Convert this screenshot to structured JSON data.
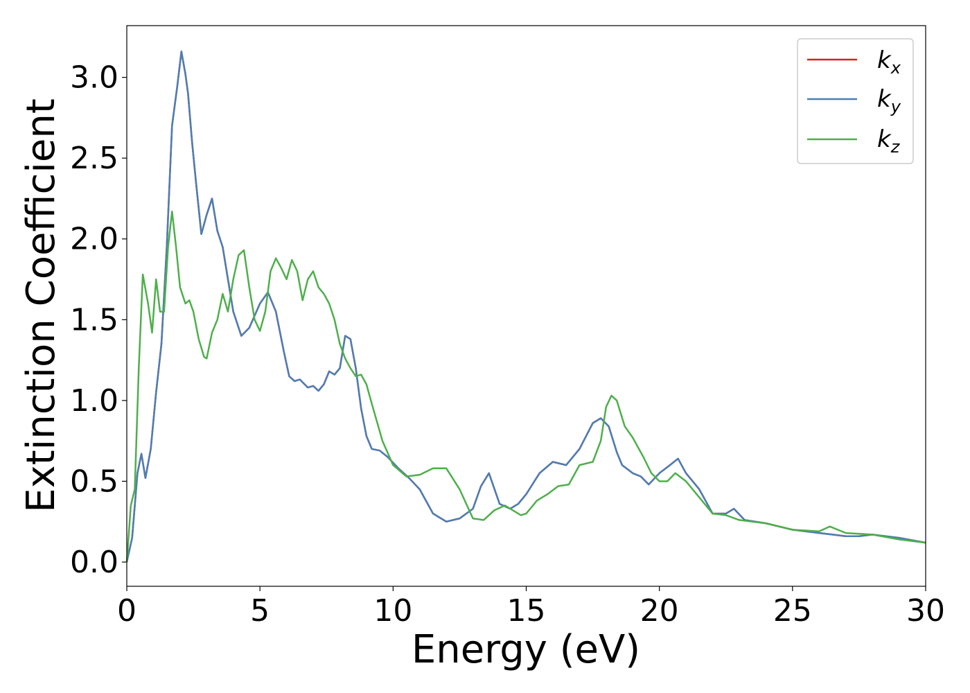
{
  "chart_data": {
    "type": "line",
    "title": "",
    "xlabel": "Energy (eV)",
    "ylabel": "Extinction Coefficient",
    "xlim": [
      0,
      30
    ],
    "ylim": [
      -0.15,
      3.32
    ],
    "xticks": [
      0,
      5,
      10,
      15,
      20,
      25,
      30
    ],
    "yticks": [
      0.0,
      0.5,
      1.0,
      1.5,
      2.0,
      2.5,
      3.0
    ],
    "xtick_labels": [
      "0",
      "5",
      "10",
      "15",
      "20",
      "25",
      "30"
    ],
    "ytick_labels": [
      "0.0",
      "0.5",
      "1.0",
      "1.5",
      "2.0",
      "2.5",
      "3.0"
    ],
    "grid": false,
    "legend_position": "top-right",
    "series": [
      {
        "name": "kx",
        "label_main": "k",
        "label_sub": "x",
        "color": "#e41a1c",
        "x": [
          0,
          0.2,
          0.4,
          0.55,
          0.7,
          0.9,
          1.1,
          1.3,
          1.5,
          1.7,
          1.9,
          2.05,
          2.2,
          2.3,
          2.45,
          2.6,
          2.8,
          3.0,
          3.2,
          3.4,
          3.6,
          3.8,
          4.0,
          4.3,
          4.6,
          5.0,
          5.3,
          5.6,
          5.9,
          6.1,
          6.3,
          6.5,
          6.8,
          7.0,
          7.2,
          7.4,
          7.6,
          7.8,
          8.0,
          8.2,
          8.4,
          8.6,
          8.8,
          9.0,
          9.2,
          9.5,
          9.8,
          10.2,
          10.6,
          11.0,
          11.5,
          12.0,
          12.5,
          13.0,
          13.3,
          13.6,
          14.0,
          14.4,
          14.7,
          15.0,
          15.5,
          16.0,
          16.5,
          17.0,
          17.5,
          17.8,
          18.1,
          18.4,
          18.6,
          19.0,
          19.3,
          19.6,
          20.0,
          20.4,
          20.7,
          21.0,
          21.5,
          22.0,
          22.5,
          22.8,
          23.2,
          24.0,
          25.0,
          26.0,
          26.5,
          27.0,
          27.5,
          28.0,
          29.0,
          30.0
        ],
        "y": [
          0.0,
          0.15,
          0.55,
          0.67,
          0.52,
          0.7,
          1.05,
          1.35,
          1.95,
          2.7,
          2.95,
          3.16,
          3.02,
          2.9,
          2.6,
          2.35,
          2.03,
          2.15,
          2.25,
          2.05,
          1.95,
          1.75,
          1.55,
          1.4,
          1.45,
          1.6,
          1.67,
          1.55,
          1.3,
          1.15,
          1.12,
          1.13,
          1.08,
          1.09,
          1.06,
          1.1,
          1.18,
          1.16,
          1.2,
          1.4,
          1.38,
          1.2,
          0.95,
          0.78,
          0.7,
          0.69,
          0.65,
          0.58,
          0.52,
          0.45,
          0.3,
          0.25,
          0.27,
          0.33,
          0.47,
          0.55,
          0.36,
          0.33,
          0.36,
          0.42,
          0.55,
          0.62,
          0.6,
          0.7,
          0.86,
          0.89,
          0.84,
          0.68,
          0.6,
          0.55,
          0.53,
          0.48,
          0.55,
          0.6,
          0.64,
          0.55,
          0.45,
          0.3,
          0.3,
          0.33,
          0.26,
          0.24,
          0.2,
          0.18,
          0.17,
          0.16,
          0.16,
          0.17,
          0.15,
          0.12
        ]
      },
      {
        "name": "ky",
        "label_main": "k",
        "label_sub": "y",
        "color": "#4a7fb5",
        "x": [
          0,
          0.2,
          0.4,
          0.55,
          0.7,
          0.9,
          1.1,
          1.3,
          1.5,
          1.7,
          1.9,
          2.05,
          2.2,
          2.3,
          2.45,
          2.6,
          2.8,
          3.0,
          3.2,
          3.4,
          3.6,
          3.8,
          4.0,
          4.3,
          4.6,
          5.0,
          5.3,
          5.6,
          5.9,
          6.1,
          6.3,
          6.5,
          6.8,
          7.0,
          7.2,
          7.4,
          7.6,
          7.8,
          8.0,
          8.2,
          8.4,
          8.6,
          8.8,
          9.0,
          9.2,
          9.5,
          9.8,
          10.2,
          10.6,
          11.0,
          11.5,
          12.0,
          12.5,
          13.0,
          13.3,
          13.6,
          14.0,
          14.4,
          14.7,
          15.0,
          15.5,
          16.0,
          16.5,
          17.0,
          17.5,
          17.8,
          18.1,
          18.4,
          18.6,
          19.0,
          19.3,
          19.6,
          20.0,
          20.4,
          20.7,
          21.0,
          21.5,
          22.0,
          22.5,
          22.8,
          23.2,
          24.0,
          25.0,
          26.0,
          26.5,
          27.0,
          27.5,
          28.0,
          29.0,
          30.0
        ],
        "y": [
          0.0,
          0.15,
          0.55,
          0.67,
          0.52,
          0.7,
          1.05,
          1.35,
          1.95,
          2.7,
          2.95,
          3.16,
          3.02,
          2.9,
          2.6,
          2.35,
          2.03,
          2.15,
          2.25,
          2.05,
          1.95,
          1.75,
          1.55,
          1.4,
          1.45,
          1.6,
          1.67,
          1.55,
          1.3,
          1.15,
          1.12,
          1.13,
          1.08,
          1.09,
          1.06,
          1.1,
          1.18,
          1.16,
          1.2,
          1.4,
          1.38,
          1.2,
          0.95,
          0.78,
          0.7,
          0.69,
          0.65,
          0.58,
          0.52,
          0.45,
          0.3,
          0.25,
          0.27,
          0.33,
          0.47,
          0.55,
          0.36,
          0.33,
          0.36,
          0.42,
          0.55,
          0.62,
          0.6,
          0.7,
          0.86,
          0.89,
          0.84,
          0.68,
          0.6,
          0.55,
          0.53,
          0.48,
          0.55,
          0.6,
          0.64,
          0.55,
          0.45,
          0.3,
          0.3,
          0.33,
          0.26,
          0.24,
          0.2,
          0.18,
          0.17,
          0.16,
          0.16,
          0.17,
          0.15,
          0.12
        ]
      },
      {
        "name": "kz",
        "label_main": "k",
        "label_sub": "z",
        "color": "#4daf4a",
        "x": [
          0,
          0.15,
          0.3,
          0.45,
          0.6,
          0.8,
          0.95,
          1.1,
          1.25,
          1.4,
          1.55,
          1.7,
          1.85,
          2.0,
          2.2,
          2.35,
          2.5,
          2.7,
          2.9,
          3.0,
          3.2,
          3.4,
          3.6,
          3.8,
          4.0,
          4.2,
          4.4,
          4.6,
          4.8,
          5.0,
          5.2,
          5.4,
          5.6,
          5.8,
          6.0,
          6.2,
          6.4,
          6.6,
          6.8,
          7.0,
          7.2,
          7.4,
          7.6,
          7.8,
          8.0,
          8.2,
          8.4,
          8.6,
          8.8,
          9.0,
          9.2,
          9.6,
          10.0,
          10.5,
          11.0,
          11.5,
          12.0,
          12.5,
          13.0,
          13.4,
          13.8,
          14.2,
          14.5,
          14.8,
          15.0,
          15.4,
          15.8,
          16.2,
          16.6,
          17.0,
          17.5,
          17.8,
          18.0,
          18.2,
          18.4,
          18.7,
          19.0,
          19.4,
          19.7,
          20.0,
          20.3,
          20.6,
          21.0,
          21.5,
          22.0,
          22.5,
          23.0,
          24.0,
          25.0,
          26.0,
          26.4,
          27.0,
          28.0,
          29.0,
          30.0
        ],
        "y": [
          0.0,
          0.35,
          0.45,
          1.2,
          1.78,
          1.6,
          1.42,
          1.75,
          1.55,
          1.55,
          1.95,
          2.17,
          1.95,
          1.7,
          1.6,
          1.62,
          1.55,
          1.38,
          1.27,
          1.26,
          1.42,
          1.5,
          1.66,
          1.55,
          1.75,
          1.9,
          1.93,
          1.7,
          1.5,
          1.43,
          1.55,
          1.8,
          1.88,
          1.82,
          1.75,
          1.87,
          1.8,
          1.62,
          1.75,
          1.8,
          1.7,
          1.66,
          1.6,
          1.5,
          1.35,
          1.26,
          1.2,
          1.15,
          1.16,
          1.1,
          0.98,
          0.75,
          0.6,
          0.53,
          0.54,
          0.58,
          0.58,
          0.45,
          0.27,
          0.26,
          0.32,
          0.35,
          0.32,
          0.29,
          0.3,
          0.38,
          0.42,
          0.47,
          0.48,
          0.6,
          0.62,
          0.75,
          0.96,
          1.03,
          1.0,
          0.84,
          0.77,
          0.65,
          0.55,
          0.5,
          0.5,
          0.55,
          0.5,
          0.4,
          0.3,
          0.29,
          0.26,
          0.24,
          0.2,
          0.19,
          0.22,
          0.18,
          0.17,
          0.14,
          0.12
        ]
      }
    ]
  }
}
